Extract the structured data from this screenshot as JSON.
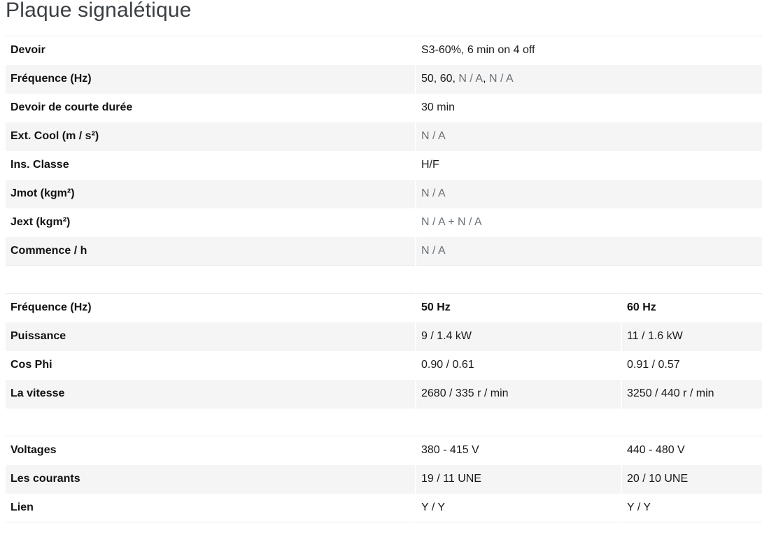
{
  "title": "Plaque signalétique",
  "general": {
    "rows": [
      {
        "label": "Devoir",
        "parts": [
          {
            "t": "S3-60%, 6 min on 4 off"
          }
        ]
      },
      {
        "label": "Fréquence (Hz)",
        "parts": [
          {
            "t": "50, 60, "
          },
          {
            "t": "N / A",
            "na": true
          },
          {
            "t": ", "
          },
          {
            "t": "N / A",
            "na": true
          }
        ]
      },
      {
        "label": "Devoir de courte durée",
        "parts": [
          {
            "t": "30 min"
          }
        ]
      },
      {
        "label": "Ext. Cool (m / s²)",
        "parts": [
          {
            "t": "N / A",
            "na": true
          }
        ]
      },
      {
        "label": "Ins. Classe",
        "parts": [
          {
            "t": "H/F"
          }
        ]
      },
      {
        "label": "Jmot (kgm²)",
        "parts": [
          {
            "t": "N / A",
            "na": true
          }
        ]
      },
      {
        "label": "Jext (kgm²)",
        "parts": [
          {
            "t": "N / A + N / A",
            "na": true
          }
        ]
      },
      {
        "label": "Commence / h",
        "parts": [
          {
            "t": "N / A",
            "na": true
          }
        ]
      }
    ]
  },
  "frequency": {
    "header": {
      "label": "Fréquence (Hz)",
      "col1": "50 Hz",
      "col2": "60 Hz"
    },
    "rows": [
      {
        "label": "Puissance",
        "col1": "9 / 1.4 kW",
        "col2": "11 / 1.6 kW"
      },
      {
        "label": "Cos Phi",
        "col1": "0.90 / 0.61",
        "col2": "0.91 / 0.57"
      },
      {
        "label": "La vitesse",
        "col1": "2680 / 335 r / min",
        "col2": "3250 / 440 r / min"
      }
    ]
  },
  "electrical": {
    "rows": [
      {
        "label": "Voltages",
        "col1": "380 - 415 V",
        "col2": "440 - 480 V"
      },
      {
        "label": "Les courants",
        "col1": "19 / 11 UNE",
        "col2": "20 / 10 UNE"
      },
      {
        "label": "Lien",
        "col1": "Y / Y",
        "col2": "Y / Y"
      }
    ]
  },
  "colors": {
    "stripe": "#f5f5f5",
    "na_text": "#6b7278",
    "title_text": "#3a3f44"
  }
}
